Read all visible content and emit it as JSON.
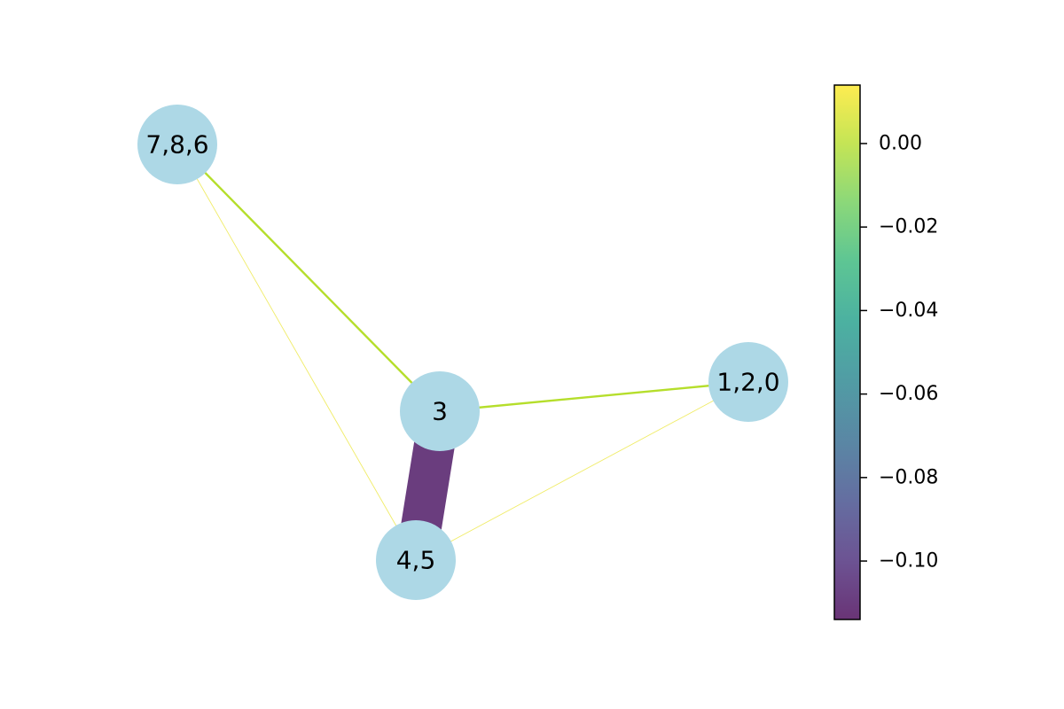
{
  "graph": {
    "nodes": [
      {
        "id": "786",
        "label": "7,8,6"
      },
      {
        "id": "3",
        "label": "3"
      },
      {
        "id": "120",
        "label": "1,2,0"
      },
      {
        "id": "45",
        "label": "4,5"
      }
    ],
    "edges": [
      {
        "source": "786",
        "target": "3",
        "value": 0.0,
        "weight": "medium"
      },
      {
        "source": "3",
        "target": "120",
        "value": 0.0,
        "weight": "medium"
      },
      {
        "source": "3",
        "target": "45",
        "value": -0.11,
        "weight": "heavy"
      },
      {
        "source": "786",
        "target": "45",
        "value": 0.01,
        "weight": "faint"
      },
      {
        "source": "120",
        "target": "45",
        "value": 0.01,
        "weight": "faint"
      }
    ],
    "node_color": "#add8e6"
  },
  "colorbar": {
    "colormap": "viridis",
    "vmin": -0.114,
    "vmax": 0.014,
    "ticks": [
      {
        "value": 0.0,
        "label": "0.00"
      },
      {
        "value": -0.02,
        "label": "−0.02"
      },
      {
        "value": -0.04,
        "label": "−0.04"
      },
      {
        "value": -0.06,
        "label": "−0.06"
      },
      {
        "value": -0.08,
        "label": "−0.08"
      },
      {
        "value": -0.1,
        "label": "−0.10"
      }
    ]
  }
}
